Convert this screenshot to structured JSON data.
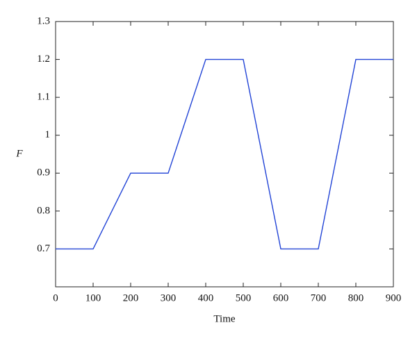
{
  "chart_data": {
    "type": "line",
    "x_label": "Time",
    "y_label": "F",
    "x": [
      0,
      100,
      200,
      300,
      400,
      500,
      600,
      700,
      800,
      900
    ],
    "series": [
      {
        "color": "#2143d6",
        "values": [
          0.7,
          0.7,
          0.9,
          0.9,
          1.2,
          1.2,
          0.7,
          0.7,
          1.2,
          1.2
        ]
      }
    ],
    "xlim": [
      0,
      900
    ],
    "ylim": [
      0.6,
      1.3
    ],
    "xticks": [
      0,
      100,
      200,
      300,
      400,
      500,
      600,
      700,
      800,
      900
    ],
    "yticks": [
      0.7,
      0.8,
      0.9,
      1,
      1.1,
      1.2,
      1.3
    ],
    "grid": false
  }
}
